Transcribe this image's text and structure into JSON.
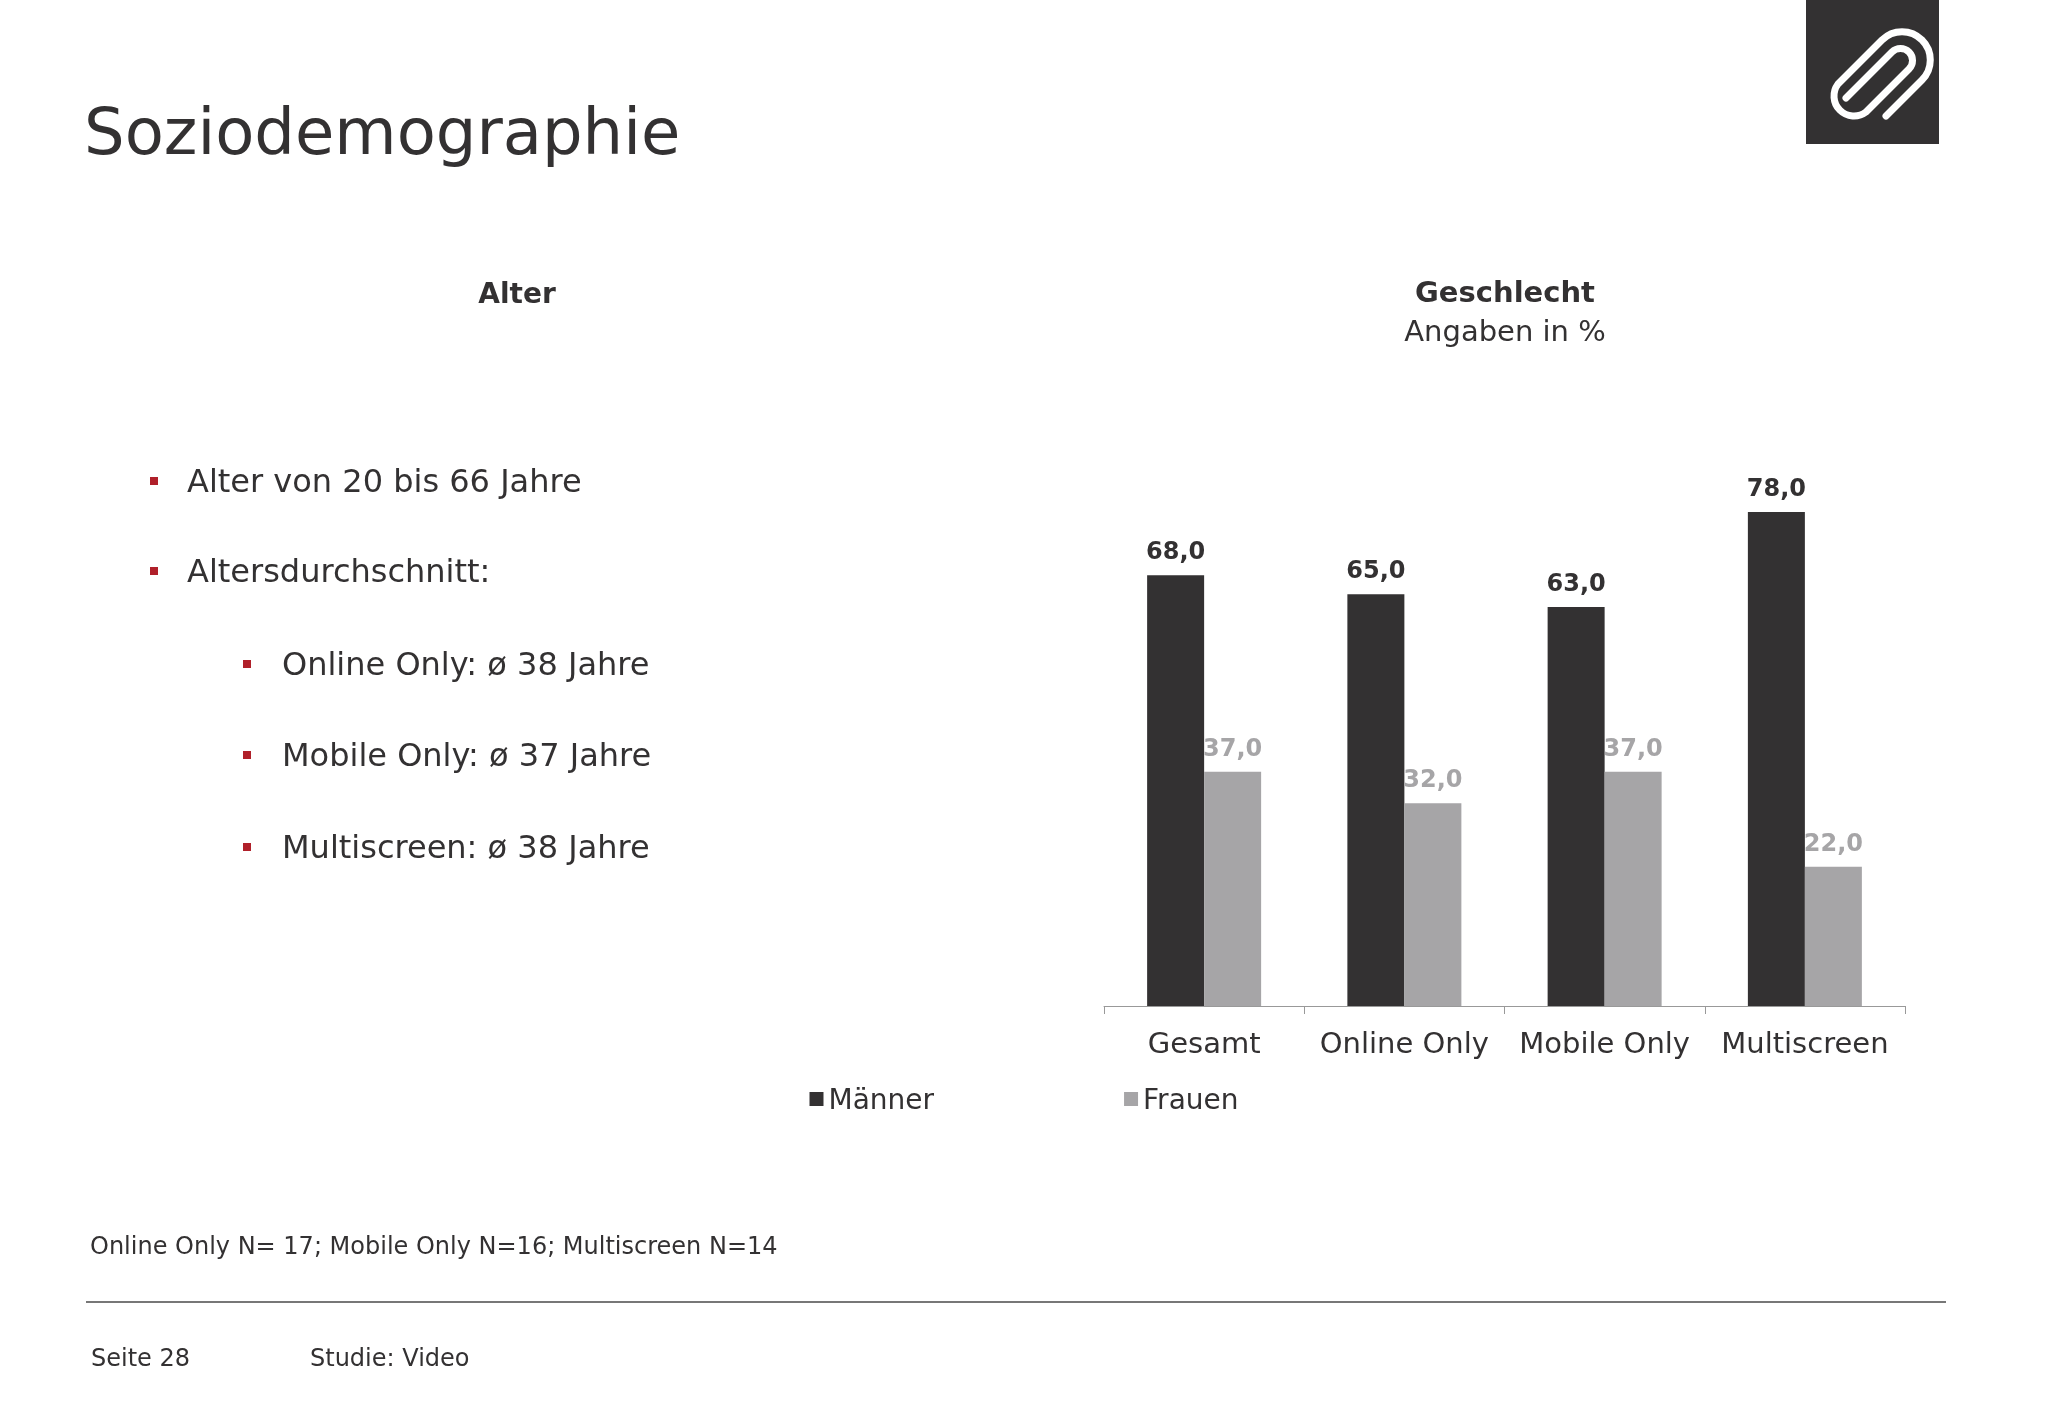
{
  "chart_data": [
    {
      "type": "other",
      "title": "Soziodemographie",
      "annotations": [
        "Alter",
        "Alter von 20 bis 66 Jahre",
        "Altersdurchschnitt:",
        "Online Only: ø 38 Jahre",
        "Mobile Only: ø 37 Jahre",
        "Multiscreen: ø 38 Jahre",
        "Online Only N= 17; Mobile Only N=16; Multiscreen N=14",
        "Seite 28",
        "Studie: Video"
      ]
    },
    {
      "type": "bar",
      "title": "Geschlecht",
      "subtitle": "Angaben in %",
      "categories": [
        "Gesamt",
        "Online Only",
        "Mobile Only",
        "Multiscreen"
      ],
      "series": [
        {
          "name": "Männer",
          "color": "#333132",
          "values": [
            68,
            65,
            63,
            78
          ],
          "value_labels": [
            "68,0",
            "65,0",
            "63,0",
            "78,0"
          ]
        },
        {
          "name": "Frauen",
          "color": "#a6a5a7",
          "values": [
            37,
            32,
            37,
            22
          ],
          "value_labels": [
            "37,0",
            "32,0",
            "37,0",
            "22,0"
          ]
        }
      ],
      "legend": "bottom"
    }
  ]
}
